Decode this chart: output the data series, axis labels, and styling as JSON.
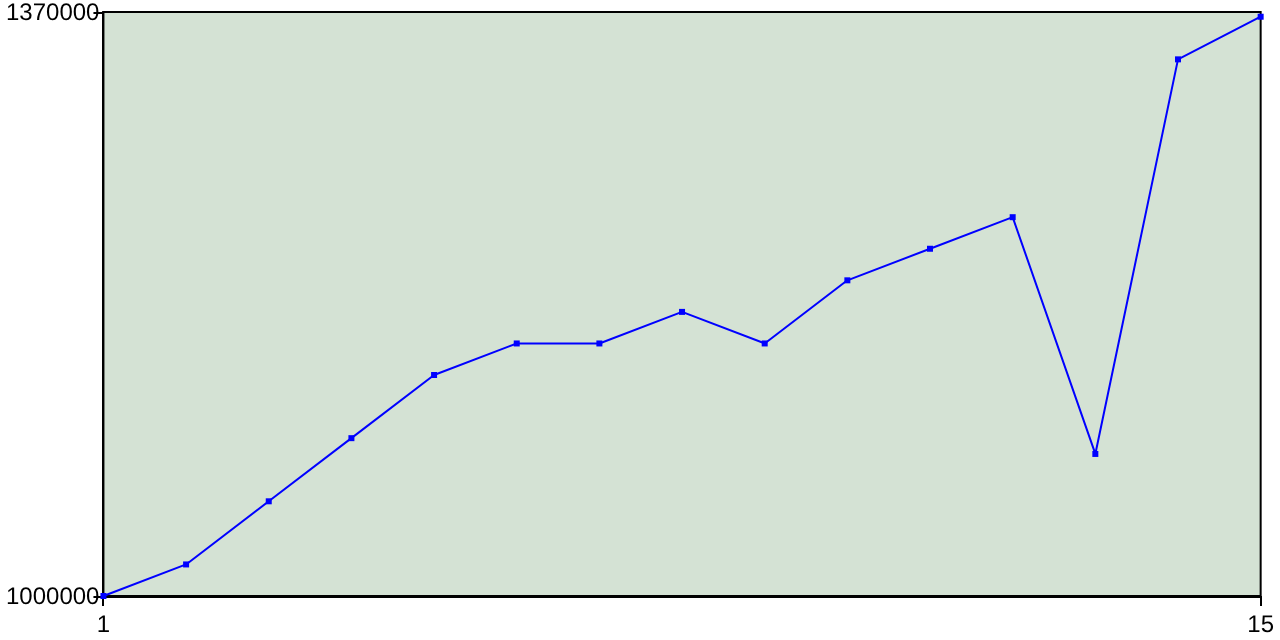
{
  "chart_data": {
    "type": "line",
    "x": [
      1,
      2,
      3,
      4,
      5,
      6,
      7,
      8,
      9,
      10,
      11,
      12,
      13,
      14,
      15
    ],
    "series": [
      {
        "color": "#0000ff",
        "values": [
          1000000,
          1020000,
          1060000,
          1100000,
          1140000,
          1160000,
          1160000,
          1180000,
          1160000,
          1200000,
          1220000,
          1240000,
          1090000,
          1340000,
          1367000
        ]
      }
    ],
    "xlim": [
      1,
      15
    ],
    "xticks": [
      1,
      15
    ],
    "ylim": [
      1000000,
      1370000
    ],
    "yticks": [
      1000000,
      1370000
    ],
    "grid": false,
    "marker": "square",
    "line_style": "solid"
  }
}
